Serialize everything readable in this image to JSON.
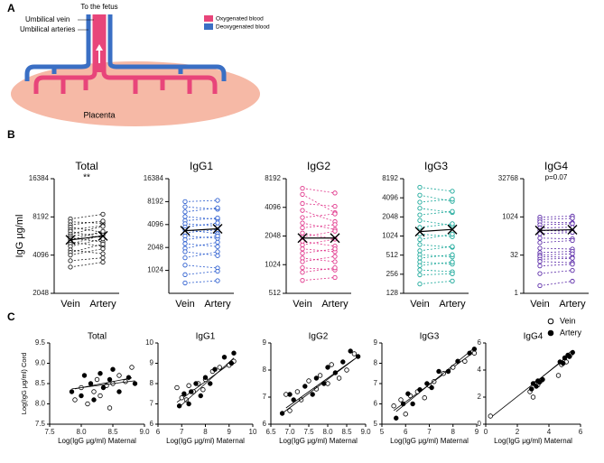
{
  "panels": [
    "A",
    "B",
    "C"
  ],
  "diagram": {
    "to_fetus": "To the fetus",
    "umbilical_vein": "Umbilical vein",
    "umbilical_arteries": "Umbilical arteries",
    "oxygenated": "Oxygenated blood",
    "deoxygenated": "Deoxygenated blood",
    "placenta": "Placenta"
  },
  "chart_data": [
    {
      "type": "paired",
      "title": "Total",
      "annotation": "**",
      "ylabel": "IgG μg/ml",
      "categories": [
        "Vein",
        "Artery"
      ],
      "color": "#222222",
      "log_base": 2,
      "ylim": [
        2048,
        16384
      ],
      "yticks": [
        2048,
        4096,
        8192,
        16384
      ],
      "vein": [
        7900,
        7500,
        7100,
        6800,
        6500,
        6300,
        6000,
        5800,
        5600,
        5400,
        5200,
        5000,
        4800,
        4500,
        4300,
        4100,
        3700,
        3300
      ],
      "artery": [
        8600,
        7300,
        7600,
        6200,
        7000,
        5600,
        6900,
        6100,
        5200,
        6300,
        4800,
        5900,
        5500,
        4200,
        5000,
        4600,
        3900,
        3600
      ],
      "means": [
        5400,
        5800
      ]
    },
    {
      "type": "paired",
      "title": "IgG1",
      "categories": [
        "Vein",
        "Artery"
      ],
      "color": "#2e5fd0",
      "log_base": 2,
      "ylim": [
        512,
        16384
      ],
      "yticks": [
        1024,
        2048,
        4096,
        8192,
        16384
      ],
      "vein": [
        8192,
        7000,
        6000,
        5200,
        4600,
        4200,
        3800,
        3500,
        3200,
        2900,
        2600,
        2300,
        2000,
        1800,
        1500,
        1200,
        900,
        700
      ],
      "artery": [
        8500,
        6500,
        6800,
        4800,
        5000,
        3900,
        4300,
        3100,
        3500,
        2700,
        2900,
        2100,
        2400,
        1600,
        1800,
        1100,
        1000,
        750
      ],
      "means": [
        3400,
        3600
      ]
    },
    {
      "type": "paired",
      "title": "IgG2",
      "categories": [
        "Vein",
        "Artery"
      ],
      "color": "#e0348a",
      "log_base": 2,
      "ylim": [
        512,
        8192
      ],
      "yticks": [
        512,
        1024,
        2048,
        4096,
        8192
      ],
      "vein": [
        6500,
        5600,
        4500,
        3800,
        3200,
        2800,
        2500,
        2200,
        2000,
        1800,
        1650,
        1500,
        1350,
        1200,
        1100,
        950,
        850,
        700
      ],
      "artery": [
        5800,
        3600,
        4200,
        2900,
        3500,
        2400,
        2700,
        1900,
        2300,
        1600,
        1900,
        1400,
        1500,
        1100,
        1250,
        900,
        950,
        750
      ],
      "means": [
        1950,
        1950
      ]
    },
    {
      "type": "paired",
      "title": "IgG3",
      "categories": [
        "Vein",
        "Artery"
      ],
      "color": "#1aa89a",
      "log_base": 2,
      "ylim": [
        128,
        8192
      ],
      "yticks": [
        128,
        256,
        512,
        1024,
        2048,
        4096,
        8192
      ],
      "vein": [
        6000,
        4500,
        3500,
        2800,
        2200,
        1800,
        1400,
        1100,
        900,
        750,
        600,
        520,
        460,
        400,
        350,
        300,
        250,
        180
      ],
      "artery": [
        5200,
        3600,
        3900,
        2400,
        2500,
        1500,
        1600,
        1000,
        1100,
        680,
        700,
        480,
        520,
        370,
        400,
        280,
        260,
        200
      ],
      "means": [
        1200,
        1300
      ]
    },
    {
      "type": "paired",
      "title": "IgG4",
      "annotation": "p=0.07",
      "categories": [
        "Vein",
        "Artery"
      ],
      "color": "#5b2aa8",
      "log_base": 2,
      "ylim": [
        1,
        32768
      ],
      "yticks": [
        1,
        32,
        1024,
        32768
      ],
      "vein": [
        1000,
        800,
        650,
        500,
        380,
        300,
        220,
        150,
        100,
        60,
        40,
        32,
        28,
        22,
        18,
        12,
        6,
        2
      ],
      "artery": [
        1100,
        900,
        600,
        550,
        400,
        280,
        250,
        140,
        120,
        55,
        45,
        36,
        26,
        24,
        16,
        14,
        8,
        3
      ],
      "means": [
        300,
        320
      ]
    },
    {
      "type": "scatter",
      "title": "Total",
      "ylabel": "Log(IgG μg/ml) Cord",
      "xlabel": "Log(IgG μg/ml) Maternal",
      "xlim": [
        7.5,
        9.0
      ],
      "xticks": [
        7.5,
        {
          "value": 8,
          "label": "8.0"
        },
        8.5,
        {
          "value": 9,
          "label": "9.0"
        }
      ],
      "ylim": [
        7.5,
        9.5
      ],
      "yticks": [
        7.5,
        {
          "value": 8,
          "label": "8.0"
        },
        8.5,
        {
          "value": 9,
          "label": "9.0"
        },
        9.5
      ],
      "series": [
        {
          "marker": "open",
          "x": [
            7.9,
            8.0,
            8.1,
            8.2,
            8.25,
            8.3,
            8.4,
            8.45,
            8.5,
            8.6,
            8.7,
            8.8
          ],
          "values": [
            8.1,
            8.4,
            8.0,
            8.3,
            8.6,
            8.2,
            8.45,
            7.9,
            8.5,
            8.7,
            8.55,
            8.9
          ],
          "slope": 0.3,
          "intercept": 6.0
        },
        {
          "marker": "filled",
          "x": [
            7.85,
            8.0,
            8.05,
            8.15,
            8.2,
            8.3,
            8.35,
            8.45,
            8.5,
            8.6,
            8.75,
            8.85
          ],
          "values": [
            8.3,
            8.2,
            8.7,
            8.5,
            8.1,
            8.75,
            8.4,
            8.6,
            8.85,
            8.3,
            8.65,
            8.5
          ],
          "slope": 0.2,
          "intercept": 6.8
        }
      ]
    },
    {
      "type": "scatter",
      "title": "IgG1",
      "xlabel": "Log(IgG μg/ml) Maternal",
      "xlim": [
        6,
        10
      ],
      "xticks": [
        6,
        7,
        8,
        9,
        10
      ],
      "ylim": [
        6,
        10
      ],
      "yticks": [
        6,
        7,
        8,
        9,
        10
      ],
      "series": [
        {
          "marker": "open",
          "x": [
            6.8,
            7.0,
            7.2,
            7.3,
            7.5,
            7.7,
            7.9,
            8.0,
            8.3,
            8.6,
            9.0,
            9.2
          ],
          "values": [
            7.8,
            7.3,
            7.2,
            7.9,
            7.6,
            8.0,
            7.7,
            8.2,
            8.6,
            8.8,
            8.9,
            9.1
          ],
          "slope": 0.85,
          "intercept": 1.3
        },
        {
          "marker": "filled",
          "x": [
            6.9,
            7.1,
            7.3,
            7.4,
            7.6,
            7.8,
            8.0,
            8.2,
            8.4,
            8.8,
            9.1,
            9.2
          ],
          "values": [
            6.9,
            7.5,
            7.0,
            7.6,
            8.0,
            7.4,
            8.3,
            8.0,
            8.7,
            9.3,
            9.0,
            9.5
          ],
          "slope": 1.05,
          "intercept": -0.4
        }
      ]
    },
    {
      "type": "scatter",
      "title": "IgG2",
      "xlabel": "Log(IgG μg/ml) Maternal",
      "xlim": [
        6.5,
        9.0
      ],
      "xticks": [
        6.5,
        {
          "value": 7,
          "label": "7.0"
        },
        7.5,
        {
          "value": 8,
          "label": "8.0"
        },
        8.5,
        {
          "value": 9,
          "label": "9.0"
        }
      ],
      "ylim": [
        6,
        9
      ],
      "yticks": [
        6,
        7,
        8,
        9
      ],
      "series": [
        {
          "marker": "open",
          "x": [
            6.9,
            7.0,
            7.2,
            7.3,
            7.5,
            7.7,
            7.8,
            8.0,
            8.1,
            8.3,
            8.5,
            8.7
          ],
          "values": [
            7.1,
            6.5,
            7.2,
            6.9,
            7.6,
            7.3,
            7.8,
            7.5,
            8.2,
            7.7,
            8.0,
            8.6
          ],
          "slope": 1.0,
          "intercept": -0.3
        },
        {
          "marker": "filled",
          "x": [
            6.8,
            7.0,
            7.1,
            7.4,
            7.6,
            7.7,
            7.9,
            8.0,
            8.2,
            8.4,
            8.6,
            8.8
          ],
          "values": [
            6.4,
            7.1,
            6.9,
            7.4,
            7.1,
            7.7,
            7.5,
            8.1,
            7.9,
            8.3,
            8.7,
            8.5
          ],
          "slope": 1.05,
          "intercept": -0.74
        }
      ]
    },
    {
      "type": "scatter",
      "title": "IgG3",
      "xlabel": "Log(IgG μg/ml) Maternal",
      "xlim": [
        5,
        9
      ],
      "xticks": [
        5,
        6,
        7,
        8,
        9
      ],
      "ylim": [
        5,
        9
      ],
      "yticks": [
        5,
        6,
        7,
        8,
        9
      ],
      "series": [
        {
          "marker": "open",
          "x": [
            5.5,
            5.8,
            6.0,
            6.2,
            6.5,
            6.8,
            7.0,
            7.2,
            7.6,
            8.0,
            8.5,
            8.9
          ],
          "values": [
            5.9,
            6.2,
            5.5,
            6.4,
            6.6,
            6.3,
            6.9,
            7.1,
            7.5,
            7.8,
            8.1,
            8.5
          ],
          "slope": 0.85,
          "intercept": 1.0
        },
        {
          "marker": "filled",
          "x": [
            5.6,
            5.9,
            6.1,
            6.3,
            6.6,
            6.9,
            7.1,
            7.4,
            7.8,
            8.2,
            8.7,
            8.9
          ],
          "values": [
            5.3,
            6.0,
            6.5,
            6.0,
            6.7,
            7.0,
            6.8,
            7.6,
            7.6,
            8.1,
            8.5,
            8.7
          ],
          "slope": 0.95,
          "intercept": 0.3
        }
      ]
    },
    {
      "type": "scatter",
      "title": "IgG4",
      "xlabel": "Log(IgG μg/ml) Maternal",
      "legend": "outside-upper-right",
      "xlim": [
        0,
        6
      ],
      "xticks": [
        0,
        2,
        4,
        6
      ],
      "ylim": [
        0,
        6
      ],
      "yticks": [
        0,
        2,
        4,
        6
      ],
      "series": [
        {
          "name": "Vein",
          "marker": "open",
          "x": [
            0.3,
            2.8,
            3.0,
            3.1,
            3.3,
            3.5,
            4.6,
            4.8,
            5.0,
            5.1,
            5.3,
            5.4
          ],
          "values": [
            0.6,
            2.4,
            2.0,
            3.0,
            2.9,
            3.2,
            3.6,
            4.4,
            4.7,
            4.6,
            5.0,
            5.2
          ],
          "slope": 0.92,
          "intercept": 0.2
        },
        {
          "name": "Artery",
          "marker": "filled",
          "x": [
            2.9,
            3.0,
            3.2,
            3.3,
            3.4,
            3.6,
            4.7,
            4.9,
            5.0,
            5.2,
            5.3,
            5.5
          ],
          "values": [
            2.6,
            3.0,
            2.8,
            3.2,
            3.1,
            3.3,
            4.6,
            4.5,
            4.9,
            5.1,
            5.0,
            5.3
          ],
          "slope": 0.95,
          "intercept": 0.1
        }
      ]
    }
  ]
}
